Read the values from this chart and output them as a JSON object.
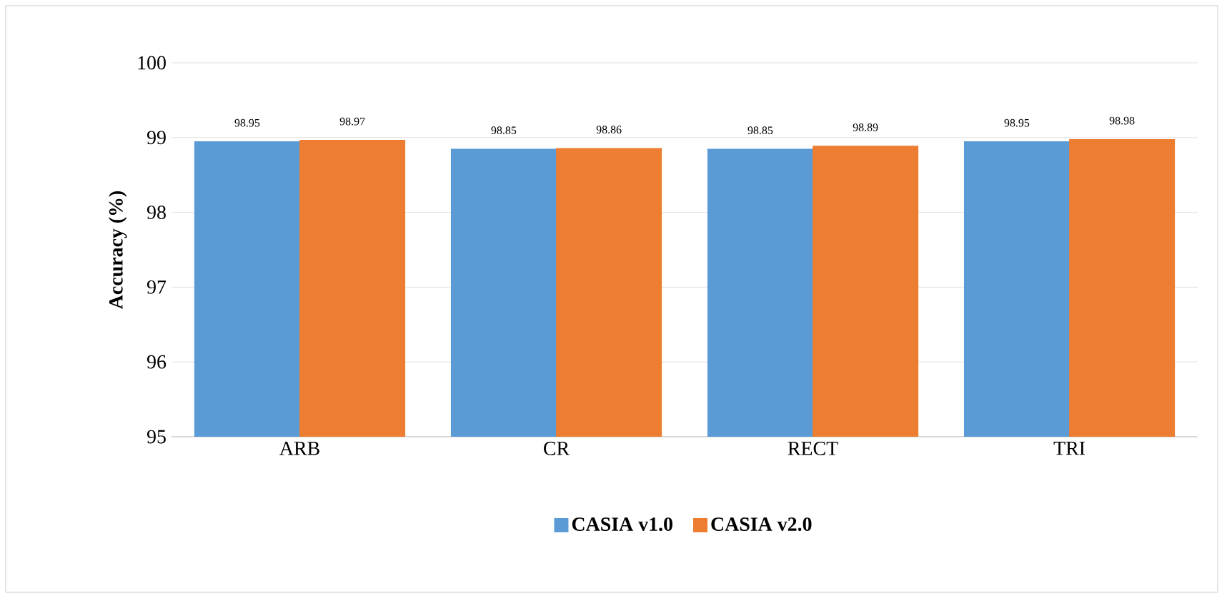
{
  "chart_data": {
    "type": "bar",
    "ylabel": "Accuracy (%)",
    "categories": [
      "ARB",
      "CR",
      "RECT",
      "TRI"
    ],
    "series": [
      {
        "name": "CASIA v1.0",
        "color": "#5b9bd5",
        "values": [
          98.95,
          98.85,
          98.85,
          98.95
        ]
      },
      {
        "name": "CASIA v2.0",
        "color": "#ed7d31",
        "values": [
          98.97,
          98.86,
          98.89,
          98.98
        ]
      }
    ],
    "ylim": [
      95,
      100
    ],
    "yticks": [
      95,
      96,
      97,
      98,
      99,
      100
    ],
    "grid": "y",
    "legend": "bottom",
    "data_labels": true
  }
}
